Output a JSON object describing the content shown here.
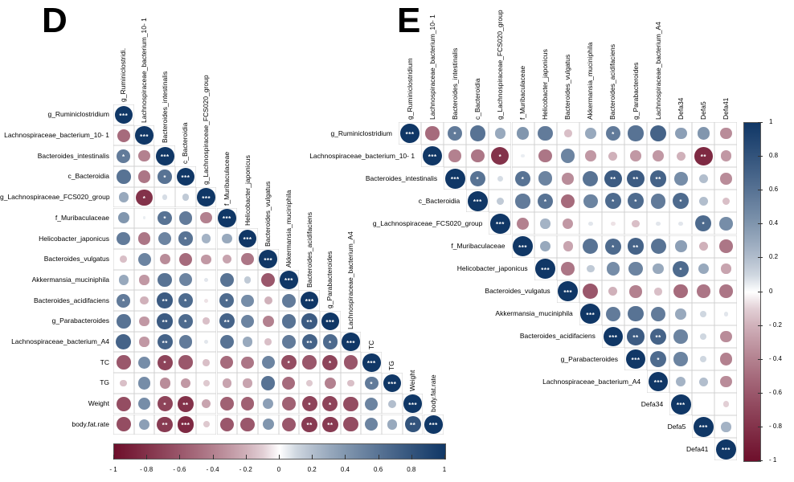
{
  "panels": {
    "d": {
      "label": "D"
    },
    "e": {
      "label": "E"
    }
  },
  "colors": {
    "positive_end": "#103766",
    "negative_end": "#6e0f2b",
    "grid_line": "#d0d0d0",
    "star": "#ffffff",
    "bar_border": "#555555",
    "text": "#000000",
    "background": "#ffffff"
  },
  "chart_data": [
    {
      "panel": "D",
      "type": "heatmap",
      "subtype": "correlation-matrix",
      "triangle": "lower",
      "legend_position": "bottom",
      "grid": true,
      "variables": [
        "g_Ruminiclostridium",
        "Lachnospiraceae_bacterium_10- 1",
        "Bacteroides_intestinalis",
        "c_Bacteroidia",
        "g_Lachnospiraceae_FCS020_group",
        "f_Muribaculaceae",
        "Helicobacter_japonicus",
        "Bacteroides_vulgatus",
        "Akkermansia_muciniphila",
        "Bacteroides_acidifaciens",
        "g_Parabacteroides",
        "Lachnospiraceae_bacterium_A4",
        "TC",
        "TG",
        "Weight",
        "body.fat.rate"
      ],
      "column_labels": [
        "g_Ruminiclostridi.",
        "Lachnospiraceae_bacterium_10- 1",
        "Bacteroides_intestinalis",
        "c_Bacteroidia",
        "g_Lachnospiraceae_FCS020_group",
        "f_Muribaculaceae",
        "Helicobacter_japonicus",
        "Bacteroides_vulgatus",
        "Akkermansia_muciniphila",
        "Bacteroides_acidifaciens",
        "g_Parabacteroides",
        "Lachnospiraceae_bacterium_A4",
        "TC",
        "TG",
        "Weight",
        "body.fat.rate"
      ],
      "matrix_lower": [
        [
          [
            1,
            "***"
          ]
        ],
        [
          [
            -0.5,
            ""
          ],
          [
            1,
            "***"
          ]
        ],
        [
          [
            0.55,
            "*"
          ],
          [
            -0.4,
            ""
          ],
          [
            1,
            "***"
          ]
        ],
        [
          [
            0.6,
            ""
          ],
          [
            -0.45,
            ""
          ],
          [
            0.6,
            "*"
          ],
          [
            1,
            "***"
          ]
        ],
        [
          [
            0.3,
            ""
          ],
          [
            -0.8,
            "*"
          ],
          [
            0.08,
            ""
          ],
          [
            0.15,
            ""
          ],
          [
            1,
            "***"
          ]
        ],
        [
          [
            0.4,
            ""
          ],
          [
            0.03,
            ""
          ],
          [
            0.6,
            "*"
          ],
          [
            0.55,
            ""
          ],
          [
            -0.4,
            ""
          ],
          [
            1,
            "***"
          ]
        ],
        [
          [
            0.55,
            ""
          ],
          [
            -0.45,
            ""
          ],
          [
            0.5,
            ""
          ],
          [
            0.6,
            "*"
          ],
          [
            0.25,
            ""
          ],
          [
            0.3,
            ""
          ],
          [
            1,
            "***"
          ]
        ],
        [
          [
            -0.15,
            ""
          ],
          [
            0.5,
            ""
          ],
          [
            -0.35,
            ""
          ],
          [
            -0.5,
            ""
          ],
          [
            -0.3,
            ""
          ],
          [
            -0.25,
            ""
          ],
          [
            -0.45,
            ""
          ],
          [
            1,
            "***"
          ]
        ],
        [
          [
            0.3,
            ""
          ],
          [
            -0.3,
            ""
          ],
          [
            0.6,
            ""
          ],
          [
            0.5,
            ""
          ],
          [
            0.05,
            ""
          ],
          [
            0.6,
            ""
          ],
          [
            0.15,
            ""
          ],
          [
            -0.6,
            ""
          ],
          [
            1,
            "***"
          ]
        ],
        [
          [
            0.55,
            "*"
          ],
          [
            -0.2,
            ""
          ],
          [
            0.75,
            "**"
          ],
          [
            0.65,
            "*"
          ],
          [
            -0.05,
            ""
          ],
          [
            0.65,
            "*"
          ],
          [
            0.45,
            ""
          ],
          [
            -0.2,
            ""
          ],
          [
            0.55,
            ""
          ],
          [
            1,
            "***"
          ]
        ],
        [
          [
            0.6,
            ""
          ],
          [
            -0.3,
            ""
          ],
          [
            0.75,
            "**"
          ],
          [
            0.65,
            "*"
          ],
          [
            -0.15,
            ""
          ],
          [
            0.7,
            "**"
          ],
          [
            0.5,
            ""
          ],
          [
            -0.4,
            ""
          ],
          [
            0.6,
            ""
          ],
          [
            0.75,
            "**"
          ],
          [
            1,
            "***"
          ]
        ],
        [
          [
            0.7,
            ""
          ],
          [
            -0.3,
            ""
          ],
          [
            0.7,
            "**"
          ],
          [
            0.55,
            ""
          ],
          [
            0.05,
            ""
          ],
          [
            0.6,
            ""
          ],
          [
            0.3,
            ""
          ],
          [
            -0.15,
            ""
          ],
          [
            0.55,
            ""
          ],
          [
            0.7,
            "**"
          ],
          [
            0.65,
            "*"
          ],
          [
            1,
            "***"
          ]
        ],
        [
          [
            -0.6,
            ""
          ],
          [
            0.45,
            ""
          ],
          [
            -0.7,
            "*"
          ],
          [
            -0.6,
            ""
          ],
          [
            -0.15,
            ""
          ],
          [
            -0.5,
            ""
          ],
          [
            -0.45,
            ""
          ],
          [
            0.5,
            ""
          ],
          [
            -0.65,
            "*"
          ],
          [
            -0.6,
            ""
          ],
          [
            -0.7,
            "*"
          ],
          [
            -0.6,
            ""
          ],
          [
            1,
            "***"
          ]
        ],
        [
          [
            -0.15,
            ""
          ],
          [
            0.45,
            ""
          ],
          [
            -0.35,
            ""
          ],
          [
            -0.3,
            ""
          ],
          [
            -0.12,
            ""
          ],
          [
            -0.25,
            ""
          ],
          [
            -0.25,
            ""
          ],
          [
            0.6,
            ""
          ],
          [
            -0.5,
            ""
          ],
          [
            -0.12,
            ""
          ],
          [
            -0.4,
            ""
          ],
          [
            -0.15,
            ""
          ],
          [
            0.55,
            "*"
          ],
          [
            1,
            "***"
          ]
        ],
        [
          [
            -0.65,
            ""
          ],
          [
            0.45,
            ""
          ],
          [
            -0.7,
            "*"
          ],
          [
            -0.8,
            "**"
          ],
          [
            -0.25,
            ""
          ],
          [
            -0.55,
            ""
          ],
          [
            -0.55,
            ""
          ],
          [
            0.35,
            ""
          ],
          [
            -0.55,
            ""
          ],
          [
            -0.7,
            "*"
          ],
          [
            -0.7,
            "*"
          ],
          [
            -0.65,
            ""
          ],
          [
            0.5,
            ""
          ],
          [
            0.2,
            ""
          ],
          [
            1,
            "***"
          ]
        ],
        [
          [
            -0.65,
            ""
          ],
          [
            0.35,
            ""
          ],
          [
            -0.75,
            "**"
          ],
          [
            -0.85,
            "***"
          ],
          [
            -0.12,
            ""
          ],
          [
            -0.6,
            ""
          ],
          [
            -0.6,
            ""
          ],
          [
            0.4,
            ""
          ],
          [
            -0.6,
            ""
          ],
          [
            -0.75,
            "**"
          ],
          [
            -0.75,
            "**"
          ],
          [
            -0.65,
            ""
          ],
          [
            0.5,
            ""
          ],
          [
            0.3,
            ""
          ],
          [
            0.8,
            "**"
          ],
          [
            1,
            "***"
          ]
        ]
      ],
      "colorbar": {
        "orientation": "horizontal",
        "min": -1,
        "max": 1,
        "tick_labels": [
          "- 1",
          "- 0.8",
          "- 0.6",
          "- 0.4",
          "- 0.2",
          "0",
          "0.2",
          "0.4",
          "0.6",
          "0.8",
          "1"
        ]
      }
    },
    {
      "panel": "E",
      "type": "heatmap",
      "subtype": "correlation-matrix",
      "triangle": "upper",
      "legend_position": "right",
      "grid": true,
      "variables": [
        "g_Ruminiclostridium",
        "Lachnospiraceae_bacterium_10- 1",
        "Bacteroides_intestinalis",
        "c_Bacteroidia",
        "g_Lachnospiraceae_FCS020_group",
        "f_Muribaculaceae",
        "Helicobacter_japonicus",
        "Bacteroides_vulgatus",
        "Akkermansia_muciniphila",
        "Bacteroides_acidifaciens",
        "g_Parabacteroides",
        "Lachnospiraceae_bacterium_A4",
        "Defa34",
        "Defa5",
        "Defa41"
      ],
      "column_labels": [
        "g_Ruminiclostridium",
        "Lachnospiraceae_bacterium_10- 1",
        "Bacteroides_intestinalis",
        "c_Bacteroidia",
        "g_Lachnospiraceae_FCS020_group",
        "f_Muribaculaceae",
        "Helicobacter_japonicus",
        "Bacteroides_vulgatus",
        "Akkermansia_muciniphila",
        "Bacteroides_acidifaciens",
        "g_Parabacteroides",
        "Lachnospiraceae_bacterium_A4",
        "Defa34",
        "Defa5",
        "Defa41"
      ],
      "matrix_upper": [
        [
          [
            1,
            "***"
          ],
          [
            -0.5,
            ""
          ],
          [
            0.55,
            "*"
          ],
          [
            0.6,
            ""
          ],
          [
            0.3,
            ""
          ],
          [
            0.4,
            ""
          ],
          [
            0.55,
            ""
          ],
          [
            -0.15,
            ""
          ],
          [
            0.3,
            ""
          ],
          [
            0.55,
            "*"
          ],
          [
            0.6,
            ""
          ],
          [
            0.7,
            ""
          ],
          [
            0.35,
            ""
          ],
          [
            0.4,
            ""
          ],
          [
            -0.35,
            ""
          ]
        ],
        [
          [
            1,
            "***"
          ],
          [
            -0.4,
            ""
          ],
          [
            -0.45,
            ""
          ],
          [
            -0.8,
            "*"
          ],
          [
            0.03,
            ""
          ],
          [
            -0.45,
            ""
          ],
          [
            0.5,
            ""
          ],
          [
            -0.3,
            ""
          ],
          [
            -0.2,
            ""
          ],
          [
            -0.3,
            ""
          ],
          [
            -0.3,
            ""
          ],
          [
            -0.2,
            ""
          ],
          [
            -0.85,
            "**"
          ],
          [
            -0.3,
            ""
          ]
        ],
        [
          [
            1,
            "***"
          ],
          [
            0.6,
            "*"
          ],
          [
            0.08,
            ""
          ],
          [
            0.6,
            "*"
          ],
          [
            0.5,
            ""
          ],
          [
            -0.35,
            ""
          ],
          [
            0.6,
            ""
          ],
          [
            0.75,
            "**"
          ],
          [
            0.75,
            "**"
          ],
          [
            0.7,
            "**"
          ],
          [
            0.45,
            ""
          ],
          [
            0.2,
            ""
          ],
          [
            -0.35,
            ""
          ]
        ],
        [
          [
            1,
            "***"
          ],
          [
            0.15,
            ""
          ],
          [
            0.55,
            ""
          ],
          [
            0.6,
            "*"
          ],
          [
            -0.5,
            ""
          ],
          [
            0.5,
            ""
          ],
          [
            0.65,
            "*"
          ],
          [
            0.65,
            "*"
          ],
          [
            0.55,
            ""
          ],
          [
            0.65,
            "*"
          ],
          [
            0.2,
            ""
          ],
          [
            -0.15,
            ""
          ]
        ],
        [
          [
            1,
            "***"
          ],
          [
            -0.4,
            ""
          ],
          [
            0.25,
            ""
          ],
          [
            -0.3,
            ""
          ],
          [
            0.05,
            ""
          ],
          [
            -0.05,
            ""
          ],
          [
            -0.15,
            ""
          ],
          [
            0.05,
            ""
          ],
          [
            0.05,
            ""
          ],
          [
            0.65,
            "*"
          ],
          [
            0.45,
            ""
          ]
        ],
        [
          [
            1,
            "***"
          ],
          [
            0.3,
            ""
          ],
          [
            -0.25,
            ""
          ],
          [
            0.6,
            ""
          ],
          [
            0.65,
            "*"
          ],
          [
            0.7,
            "**"
          ],
          [
            0.6,
            ""
          ],
          [
            0.35,
            ""
          ],
          [
            -0.2,
            ""
          ],
          [
            -0.45,
            ""
          ]
        ],
        [
          [
            1,
            "***"
          ],
          [
            -0.45,
            ""
          ],
          [
            0.15,
            ""
          ],
          [
            0.45,
            ""
          ],
          [
            0.5,
            ""
          ],
          [
            0.3,
            ""
          ],
          [
            0.65,
            "*"
          ],
          [
            0.3,
            ""
          ],
          [
            -0.25,
            ""
          ]
        ],
        [
          [
            1,
            "***"
          ],
          [
            -0.6,
            ""
          ],
          [
            -0.2,
            ""
          ],
          [
            -0.4,
            ""
          ],
          [
            -0.15,
            ""
          ],
          [
            -0.5,
            ""
          ],
          [
            -0.45,
            ""
          ],
          [
            -0.45,
            ""
          ]
        ],
        [
          [
            1,
            "***"
          ],
          [
            0.55,
            ""
          ],
          [
            0.6,
            ""
          ],
          [
            0.55,
            ""
          ],
          [
            0.3,
            ""
          ],
          [
            0.1,
            ""
          ],
          [
            0.05,
            ""
          ]
        ],
        [
          [
            1,
            "***"
          ],
          [
            0.75,
            "**"
          ],
          [
            0.7,
            "**"
          ],
          [
            0.5,
            ""
          ],
          [
            0.1,
            ""
          ],
          [
            -0.35,
            ""
          ]
        ],
        [
          [
            1,
            "***"
          ],
          [
            0.65,
            "*"
          ],
          [
            0.5,
            ""
          ],
          [
            0.1,
            ""
          ],
          [
            -0.4,
            ""
          ]
        ],
        [
          [
            1,
            "***"
          ],
          [
            0.25,
            ""
          ],
          [
            0.2,
            ""
          ],
          [
            -0.35,
            ""
          ]
        ],
        [
          [
            1,
            "***"
          ],
          [
            0.0,
            ""
          ],
          [
            -0.1,
            ""
          ]
        ],
        [
          [
            1,
            "***"
          ],
          [
            0.25,
            ""
          ]
        ],
        [
          [
            1,
            "***"
          ]
        ]
      ],
      "colorbar": {
        "orientation": "vertical",
        "min": -1,
        "max": 1,
        "tick_labels": [
          "1",
          "0.8",
          "0.6",
          "0.4",
          "0.2",
          "0",
          "- 0.2",
          "- 0.4",
          "- 0.6",
          "- 0.8",
          "- 1"
        ]
      }
    }
  ]
}
